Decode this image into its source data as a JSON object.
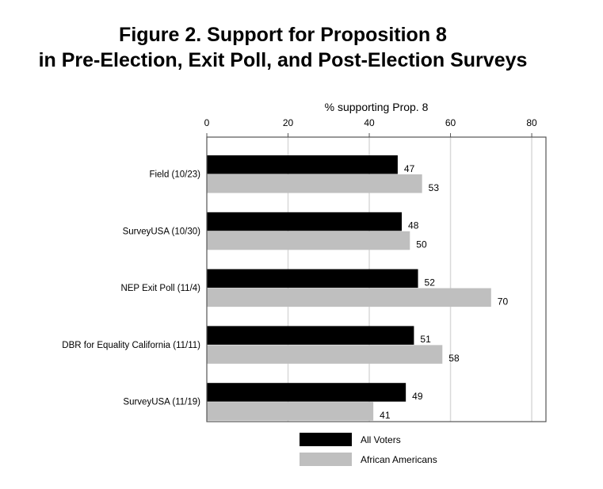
{
  "chart_data": {
    "type": "bar",
    "orientation": "horizontal",
    "title": [
      "Figure 2.  Support for Proposition 8",
      "in Pre-Election, Exit Poll, and Post-Election Surveys"
    ],
    "xlabel": "% supporting Prop. 8",
    "ylabel": "",
    "xlim": [
      0,
      83.5
    ],
    "xticks": [
      0,
      20,
      40,
      60,
      80
    ],
    "grid": true,
    "legend_position": "bottom",
    "categories": [
      "Field (10/23)",
      "SurveyUSA (10/30)",
      "NEP Exit Poll (11/4)",
      "DBR for Equality California (11/11)",
      "SurveyUSA (11/19)"
    ],
    "series": [
      {
        "name": "All Voters",
        "color": "#000000",
        "values": [
          47,
          48,
          52,
          51,
          49
        ]
      },
      {
        "name": "African Americans",
        "color": "#bfbfbf",
        "values": [
          53,
          50,
          70,
          58,
          41
        ]
      }
    ]
  }
}
